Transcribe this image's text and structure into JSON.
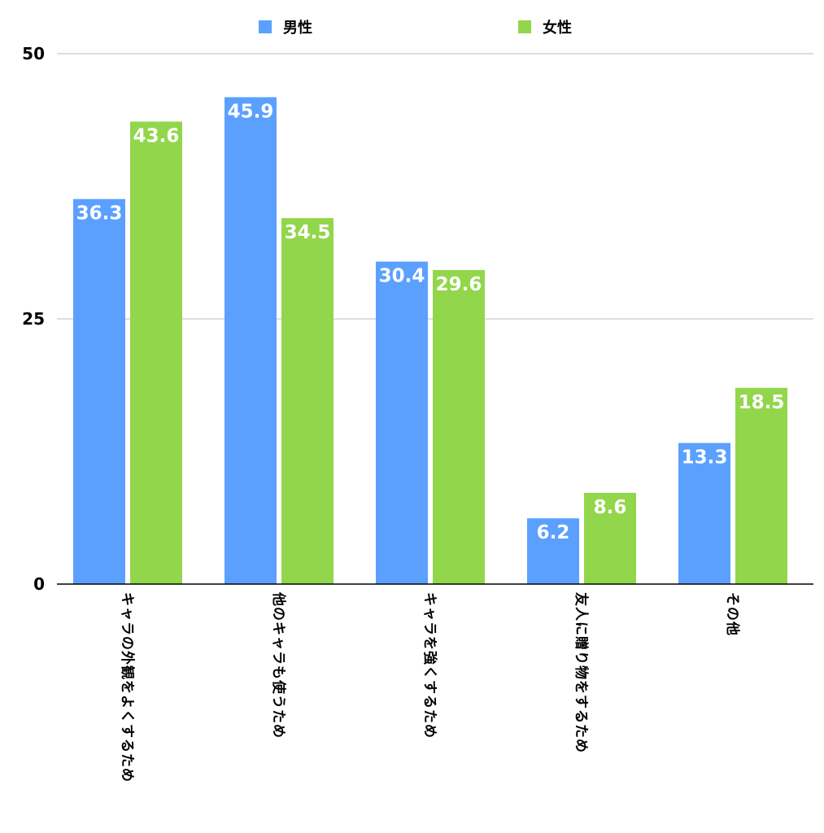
{
  "chart_data": {
    "type": "bar",
    "categories": [
      "キャラの外観をよくするため",
      "他のキャラも使うため",
      "キャラを強くするため",
      "友人に贈り物をするため",
      "その他"
    ],
    "series": [
      {
        "name": "男性",
        "color": "#5ba0ff",
        "values": [
          36.3,
          45.9,
          30.4,
          6.2,
          13.3
        ]
      },
      {
        "name": "女性",
        "color": "#92d64c",
        "values": [
          43.6,
          34.5,
          29.6,
          8.6,
          18.5
        ]
      }
    ],
    "ylim": [
      0,
      50
    ],
    "yticks": [
      0,
      25,
      50
    ],
    "grid": true,
    "legend": "top",
    "data_labels": true
  }
}
